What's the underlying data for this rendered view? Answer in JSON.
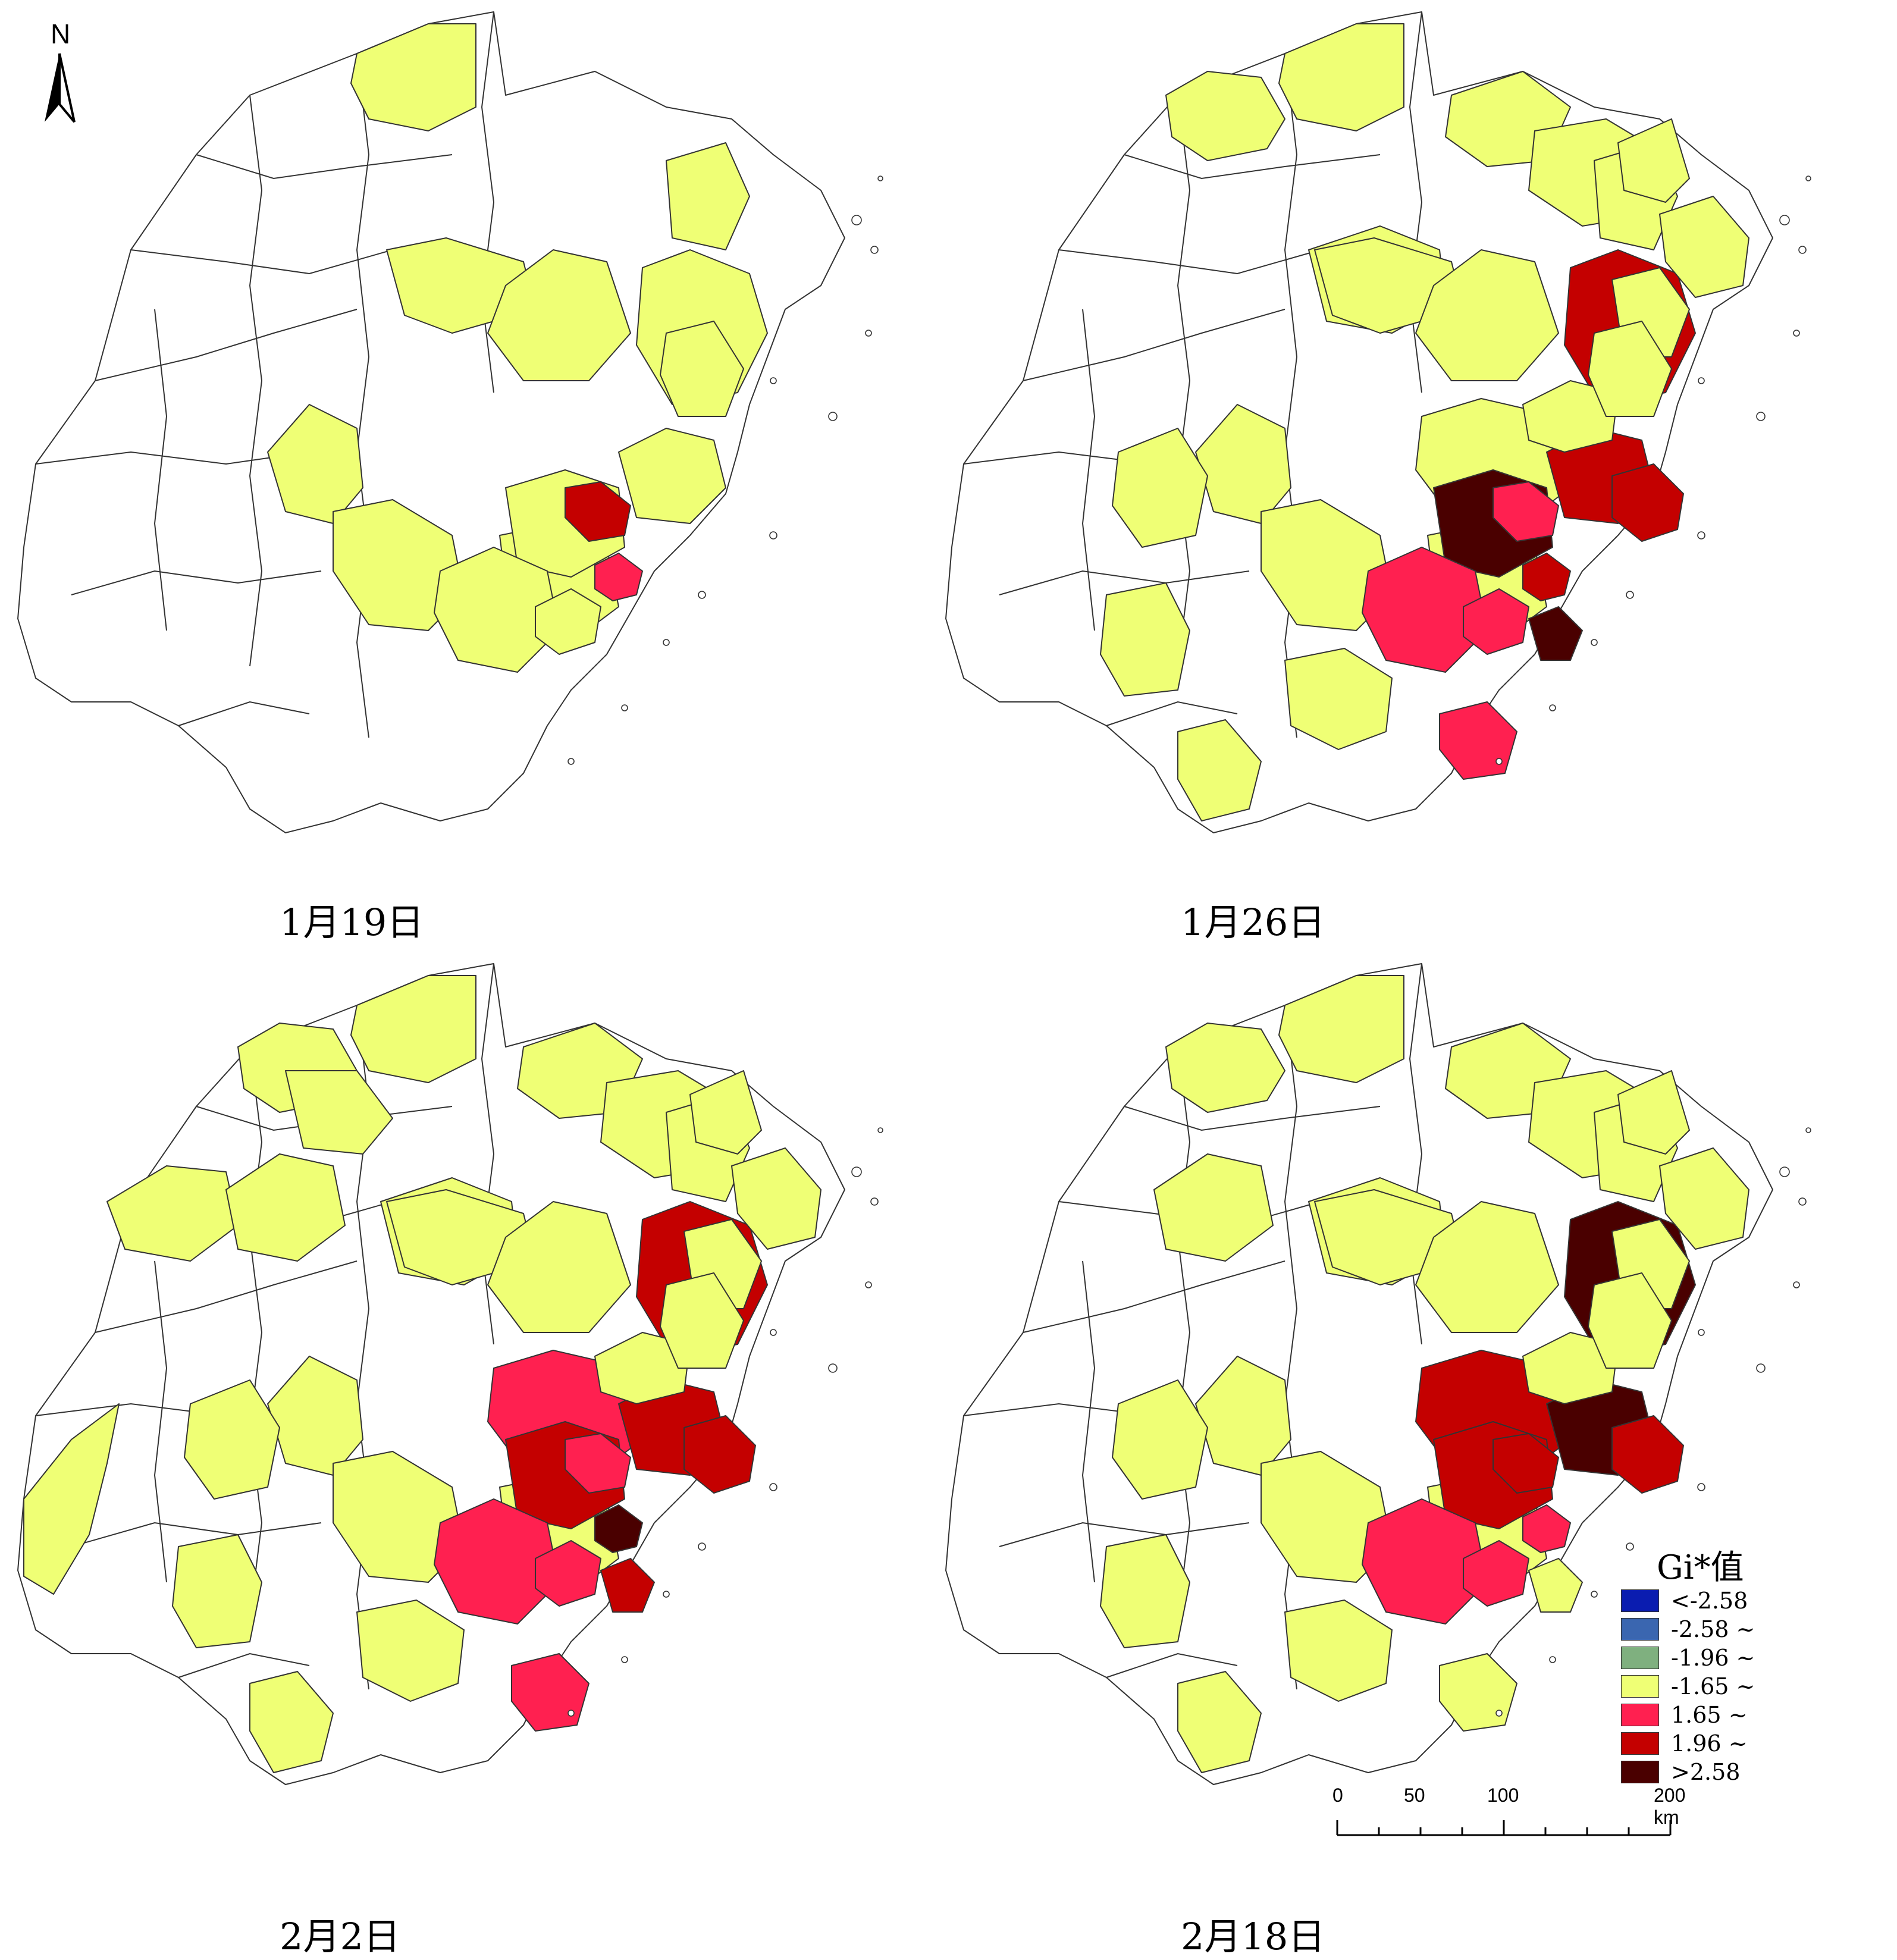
{
  "compass": {
    "label": "N"
  },
  "panels": [
    {
      "caption": "1月19日",
      "classes": {
        "hot3": [],
        "hot2": [
          "c23"
        ],
        "hot1": [
          "c29"
        ],
        "neutral": [
          "c3",
          "c4",
          "c10",
          "c12",
          "c13",
          "c14",
          "c16",
          "c17",
          "c21",
          "c22",
          "c27",
          "c28",
          "c36"
        ]
      }
    },
    {
      "caption": "1月26日",
      "classes": {
        "hot3": [
          "c21",
          "c32"
        ],
        "hot2": [
          "c17",
          "c22",
          "c25",
          "c29"
        ],
        "hot1": [
          "c23",
          "c27",
          "c31",
          "c28"
        ],
        "neutral": [
          "c2",
          "c3",
          "c4",
          "c9",
          "c10",
          "c11",
          "c12",
          "c13",
          "c14",
          "c15",
          "c16",
          "c18",
          "c19",
          "c20",
          "c24",
          "c26",
          "c30",
          "c33",
          "c34",
          "c35",
          "c36"
        ]
      }
    },
    {
      "caption": "2月2日",
      "classes": {
        "hot3": [
          "c29"
        ],
        "hot2": [
          "c17",
          "c22",
          "c25",
          "c21",
          "c32"
        ],
        "hot1": [
          "c20",
          "c23",
          "c27",
          "c28",
          "c31"
        ],
        "neutral": [
          "c1",
          "c2",
          "c3",
          "c4",
          "c5",
          "c7",
          "c8",
          "c9",
          "c10",
          "c11",
          "c12",
          "c13",
          "c14",
          "c15",
          "c16",
          "c18",
          "c19",
          "c24",
          "c26",
          "c30",
          "c33",
          "c34",
          "c35",
          "c36"
        ]
      }
    },
    {
      "caption": "2月18日",
      "classes": {
        "hot3": [
          "c17",
          "c22"
        ],
        "hot2": [
          "c20",
          "c21",
          "c23",
          "c25"
        ],
        "hot1": [
          "c27",
          "c28",
          "c29"
        ],
        "neutral": [
          "c2",
          "c3",
          "c4",
          "c7",
          "c9",
          "c10",
          "c11",
          "c12",
          "c13",
          "c14",
          "c15",
          "c16",
          "c18",
          "c19",
          "c24",
          "c26",
          "c30",
          "c31",
          "c32",
          "c33",
          "c34",
          "c35",
          "c36"
        ]
      }
    }
  ],
  "legend": {
    "title": "Gi*值",
    "items": [
      {
        "label": "<-2.58",
        "color": "#0A1CB0"
      },
      {
        "label": "-2.58 ~",
        "color": "#3A66B0"
      },
      {
        "label": "-1.96 ~",
        "color": "#7FB07F"
      },
      {
        "label": "-1.65 ~",
        "color": "#EFFF75"
      },
      {
        "label": "1.65 ~",
        "color": "#FF2050"
      },
      {
        "label": "1.96 ~",
        "color": "#C40000"
      },
      {
        "label": ">2.58",
        "color": "#4A0000"
      }
    ]
  },
  "colors": {
    "none": "#FFFFFF",
    "neutral": "#EFFF75",
    "hot1": "#FF2050",
    "hot2": "#C40000",
    "hot3": "#4A0000"
  },
  "scalebar": {
    "ticks": [
      "0",
      "50",
      "100",
      "200 km"
    ]
  }
}
